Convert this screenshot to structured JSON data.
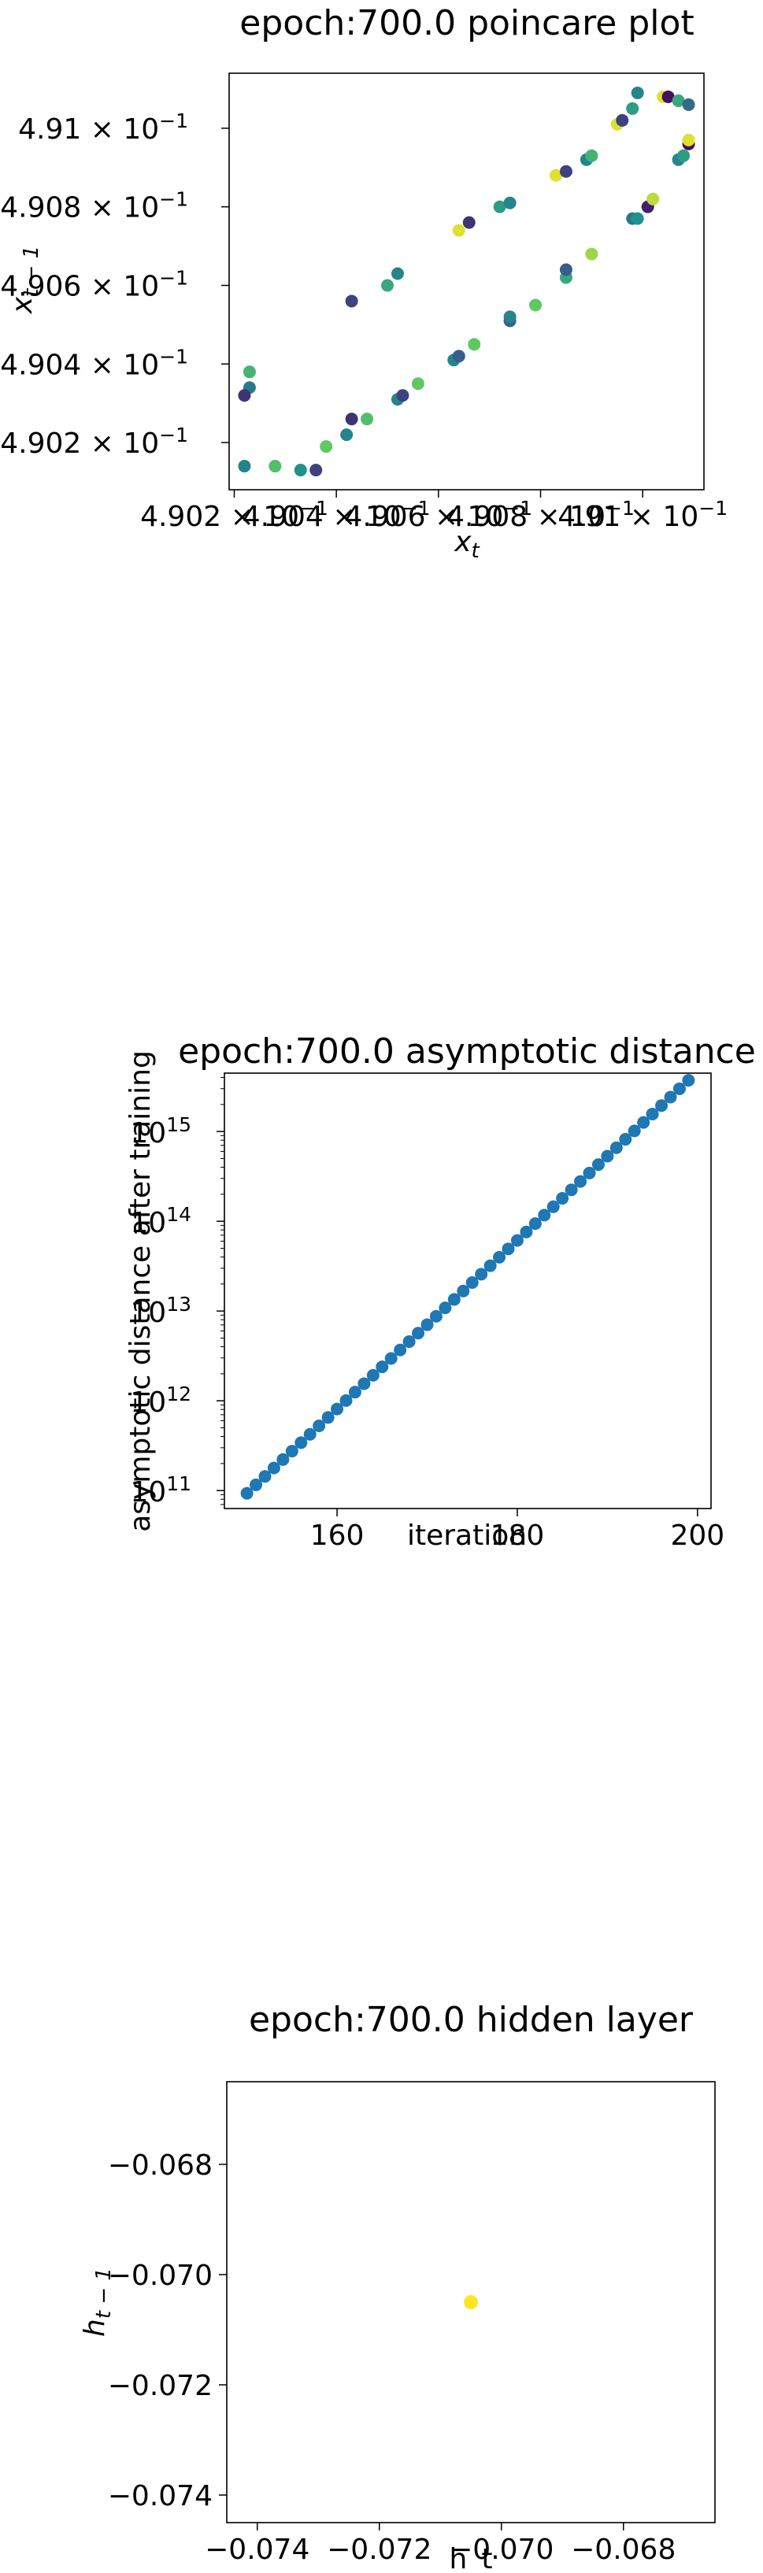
{
  "chart_data": [
    {
      "type": "scatter",
      "title": "epoch:700.0 poincare plot",
      "xlabel": "x",
      "xlabel_sub": "t",
      "ylabel": "x",
      "ylabel_sub": "t − 1",
      "xlim": [
        0.49019,
        0.49112
      ],
      "ylim": [
        0.49008,
        0.49114
      ],
      "x_tick_values": [
        0.4902,
        0.4904,
        0.4906,
        0.4908,
        0.491
      ],
      "x_tick_labels": [
        "4.902 × 10",
        "4.904 × 10",
        "4.906 × 10",
        "4.908 × 10",
        "4.91 × 10"
      ],
      "y_tick_values": [
        0.4902,
        0.4904,
        0.4906,
        0.4908,
        0.491
      ],
      "y_tick_labels": [
        "4.902 × 10",
        "4.904 × 10",
        "4.906 × 10",
        "4.908 × 10",
        "4.91 × 10"
      ],
      "tick_exponent": "−1",
      "colormap": "viridis",
      "points": [
        {
          "x": 0.49023,
          "y": 0.49034,
          "c": 0.4
        },
        {
          "x": 0.49023,
          "y": 0.49038,
          "c": 0.65
        },
        {
          "x": 0.49022,
          "y": 0.49032,
          "c": 0.15
        },
        {
          "x": 0.49022,
          "y": 0.49014,
          "c": 0.45
        },
        {
          "x": 0.49028,
          "y": 0.49014,
          "c": 0.7
        },
        {
          "x": 0.49033,
          "y": 0.49013,
          "c": 0.5
        },
        {
          "x": 0.49036,
          "y": 0.49013,
          "c": 0.2
        },
        {
          "x": 0.49038,
          "y": 0.49019,
          "c": 0.75
        },
        {
          "x": 0.49042,
          "y": 0.49022,
          "c": 0.45
        },
        {
          "x": 0.49043,
          "y": 0.49026,
          "c": 0.15
        },
        {
          "x": 0.49046,
          "y": 0.49026,
          "c": 0.7
        },
        {
          "x": 0.49043,
          "y": 0.49056,
          "c": 0.2
        },
        {
          "x": 0.4905,
          "y": 0.4906,
          "c": 0.6
        },
        {
          "x": 0.49052,
          "y": 0.49063,
          "c": 0.45
        },
        {
          "x": 0.49052,
          "y": 0.49031,
          "c": 0.45
        },
        {
          "x": 0.49053,
          "y": 0.49032,
          "c": 0.2
        },
        {
          "x": 0.49056,
          "y": 0.49035,
          "c": 0.75
        },
        {
          "x": 0.49063,
          "y": 0.49041,
          "c": 0.45
        },
        {
          "x": 0.49064,
          "y": 0.49042,
          "c": 0.3
        },
        {
          "x": 0.49067,
          "y": 0.49045,
          "c": 0.75
        },
        {
          "x": 0.49064,
          "y": 0.49074,
          "c": 0.95
        },
        {
          "x": 0.49066,
          "y": 0.49076,
          "c": 0.15
        },
        {
          "x": 0.49072,
          "y": 0.4908,
          "c": 0.55
        },
        {
          "x": 0.49074,
          "y": 0.49081,
          "c": 0.45
        },
        {
          "x": 0.49074,
          "y": 0.49051,
          "c": 0.3
        },
        {
          "x": 0.49074,
          "y": 0.49052,
          "c": 0.45
        },
        {
          "x": 0.49079,
          "y": 0.49055,
          "c": 0.75
        },
        {
          "x": 0.49085,
          "y": 0.49062,
          "c": 0.6
        },
        {
          "x": 0.49085,
          "y": 0.49064,
          "c": 0.3
        },
        {
          "x": 0.4909,
          "y": 0.49068,
          "c": 0.85
        },
        {
          "x": 0.49083,
          "y": 0.49088,
          "c": 0.95
        },
        {
          "x": 0.49085,
          "y": 0.49089,
          "c": 0.2
        },
        {
          "x": 0.49089,
          "y": 0.49092,
          "c": 0.45
        },
        {
          "x": 0.4909,
          "y": 0.49093,
          "c": 0.65
        },
        {
          "x": 0.49095,
          "y": 0.49101,
          "c": 0.95
        },
        {
          "x": 0.49096,
          "y": 0.49102,
          "c": 0.2
        },
        {
          "x": 0.49098,
          "y": 0.49105,
          "c": 0.55
        },
        {
          "x": 0.49099,
          "y": 0.49109,
          "c": 0.45
        },
        {
          "x": 0.49098,
          "y": 0.49077,
          "c": 0.4
        },
        {
          "x": 0.49099,
          "y": 0.49077,
          "c": 0.5
        },
        {
          "x": 0.49101,
          "y": 0.4908,
          "c": 0.1
        },
        {
          "x": 0.49102,
          "y": 0.49082,
          "c": 0.9
        },
        {
          "x": 0.49104,
          "y": 0.49108,
          "c": 0.95
        },
        {
          "x": 0.49105,
          "y": 0.49108,
          "c": 0.05
        },
        {
          "x": 0.49107,
          "y": 0.49107,
          "c": 0.6
        },
        {
          "x": 0.49109,
          "y": 0.49106,
          "c": 0.35
        },
        {
          "x": 0.49107,
          "y": 0.49092,
          "c": 0.45
        },
        {
          "x": 0.49108,
          "y": 0.49093,
          "c": 0.55
        },
        {
          "x": 0.49109,
          "y": 0.49096,
          "c": 0.05
        },
        {
          "x": 0.49109,
          "y": 0.49097,
          "c": 0.95
        }
      ]
    },
    {
      "type": "scatter",
      "title": "epoch:700.0 asymptotic distance",
      "xlabel": "iteration",
      "ylabel": "asymptotic distance after training",
      "xlim": [
        147.5,
        201.5
      ],
      "ylim_log10": [
        10.8,
        15.65
      ],
      "y_scale": "log",
      "x_ticks": [
        160,
        180,
        200
      ],
      "y_ticks_log10": [
        11,
        12,
        13,
        14,
        15
      ],
      "y_tick_base": "10",
      "color": "#1f77b4",
      "x_start": 150,
      "x_end": 199,
      "log10_y_start": 10.97,
      "log10_y_end": 15.57
    },
    {
      "type": "scatter",
      "title": "epoch:700.0 hidden layer",
      "xlabel": "h_t",
      "ylabel": "h",
      "ylabel_sub": "t − 1",
      "xlim": [
        -0.0745,
        -0.0665
      ],
      "ylim": [
        -0.0745,
        -0.0665
      ],
      "x_ticks": [
        -0.074,
        -0.072,
        -0.07,
        -0.068
      ],
      "x_tick_labels": [
        "−0.074",
        "−0.072",
        "−0.070",
        "−0.068"
      ],
      "y_ticks": [
        -0.074,
        -0.072,
        -0.07,
        -0.068
      ],
      "y_tick_labels": [
        "−0.074",
        "−0.072",
        "−0.070",
        "−0.068"
      ],
      "color": "#fde725",
      "points": [
        {
          "x": -0.0705,
          "y": -0.0705
        }
      ]
    }
  ]
}
